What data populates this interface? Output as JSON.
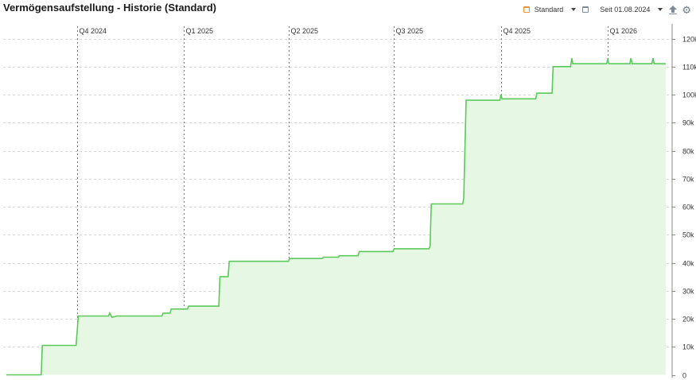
{
  "header": {
    "title": "Vermögensaufstellung - Historie (Standard)",
    "view_label": "Standard",
    "date_label": "Seit 01.08.2024"
  },
  "icons": {
    "view": "dropdown-icon",
    "calendar": "calendar-icon",
    "export": "upload-icon",
    "settings": "gear-icon"
  },
  "colors": {
    "line": "#5bc95b",
    "area": "#e6f8e3",
    "view_icon": "#e8923b"
  },
  "chart_data": {
    "type": "area",
    "title": "",
    "xlabel": "",
    "ylabel": "",
    "x_range": [
      "2024-08-01",
      "2026-02-20"
    ],
    "ylim": [
      0,
      120000
    ],
    "grid": true,
    "y_ticks": [
      0,
      10000,
      20000,
      30000,
      40000,
      50000,
      60000,
      70000,
      80000,
      90000,
      100000,
      110000,
      120000
    ],
    "y_tick_labels": [
      "0",
      "10k",
      "20k",
      "30k",
      "40k",
      "50k",
      "60k",
      "70k",
      "80k",
      "90k",
      "100k",
      "110k",
      "120k"
    ],
    "quarter_markers": [
      {
        "label": "Q4 2024",
        "date": "2024-10-01"
      },
      {
        "label": "Q1 2025",
        "date": "2025-01-01"
      },
      {
        "label": "Q2 2025",
        "date": "2025-04-01"
      },
      {
        "label": "Q3 2025",
        "date": "2025-07-01"
      },
      {
        "label": "Q4 2025",
        "date": "2025-10-01"
      },
      {
        "label": "Q1 2026",
        "date": "2026-01-01"
      }
    ],
    "series": [
      {
        "points": [
          [
            "2024-08-01",
            0
          ],
          [
            "2024-08-31",
            0
          ],
          [
            "2024-09-01",
            10500
          ],
          [
            "2024-09-30",
            10500
          ],
          [
            "2024-10-02",
            21000
          ],
          [
            "2024-10-28",
            21000
          ],
          [
            "2024-10-29",
            22000
          ],
          [
            "2024-10-31",
            20500
          ],
          [
            "2024-11-04",
            21000
          ],
          [
            "2024-12-13",
            21000
          ],
          [
            "2024-12-14",
            22000
          ],
          [
            "2024-12-20",
            22000
          ],
          [
            "2024-12-21",
            23500
          ],
          [
            "2025-01-04",
            23500
          ],
          [
            "2025-01-05",
            24500
          ],
          [
            "2025-01-31",
            24500
          ],
          [
            "2025-02-01",
            35000
          ],
          [
            "2025-02-08",
            35000
          ],
          [
            "2025-02-09",
            40500
          ],
          [
            "2025-04-01",
            40500
          ],
          [
            "2025-04-02",
            41500
          ],
          [
            "2025-04-30",
            41500
          ],
          [
            "2025-05-01",
            42000
          ],
          [
            "2025-05-14",
            42000
          ],
          [
            "2025-05-15",
            42500
          ],
          [
            "2025-05-31",
            42500
          ],
          [
            "2025-06-01",
            44000
          ],
          [
            "2025-06-30",
            44000
          ],
          [
            "2025-07-01",
            45000
          ],
          [
            "2025-07-31",
            45000
          ],
          [
            "2025-08-01",
            46000
          ],
          [
            "2025-08-02",
            61000
          ],
          [
            "2025-08-29",
            61000
          ],
          [
            "2025-08-30",
            63000
          ],
          [
            "2025-09-01",
            98000
          ],
          [
            "2025-09-30",
            98000
          ],
          [
            "2025-10-01",
            100000
          ],
          [
            "2025-10-02",
            98500
          ],
          [
            "2025-10-31",
            98500
          ],
          [
            "2025-11-01",
            100500
          ],
          [
            "2025-11-14",
            100500
          ],
          [
            "2025-11-15",
            110000
          ],
          [
            "2025-11-30",
            110000
          ],
          [
            "2025-12-01",
            113000
          ],
          [
            "2025-12-02",
            111000
          ],
          [
            "2025-12-31",
            111000
          ],
          [
            "2026-01-01",
            112500
          ],
          [
            "2026-01-02",
            111000
          ],
          [
            "2026-01-20",
            111000
          ],
          [
            "2026-01-21",
            113000
          ],
          [
            "2026-01-22",
            111000
          ],
          [
            "2026-02-08",
            111000
          ],
          [
            "2026-02-09",
            113000
          ],
          [
            "2026-02-10",
            111000
          ],
          [
            "2026-02-20",
            111000
          ]
        ]
      }
    ]
  }
}
